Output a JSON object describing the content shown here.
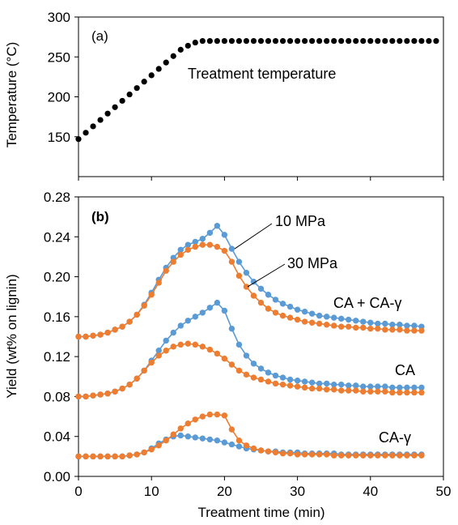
{
  "chart_data": [
    {
      "type": "scatter",
      "panel_label": "(a)",
      "xlim": [
        0,
        50
      ],
      "ylim": [
        100,
        300
      ],
      "ylabel": "Temperature (°C)",
      "y_ticks": [
        150,
        200,
        250,
        300
      ],
      "y_tick_labels": [
        "150",
        "200",
        "250",
        "300"
      ],
      "grid": false,
      "annotation": "Treatment temperature",
      "series": [
        {
          "color": "#000000",
          "x": [
            0,
            1,
            2,
            3,
            4,
            5,
            6,
            7,
            8,
            9,
            10,
            11,
            12,
            13,
            14,
            15,
            16,
            17,
            18,
            19,
            20,
            21,
            22,
            23,
            24,
            25,
            26,
            27,
            28,
            29,
            30,
            31,
            32,
            33,
            34,
            35,
            36,
            37,
            38,
            39,
            40,
            41,
            42,
            43,
            44,
            45,
            46,
            47,
            48,
            49
          ],
          "y": [
            147,
            155,
            163,
            171,
            179,
            187,
            195,
            203,
            211,
            219,
            227,
            235,
            243,
            251,
            259,
            264,
            268,
            270,
            270,
            270,
            270,
            270,
            270,
            270,
            270,
            270,
            270,
            270,
            270,
            270,
            270,
            270,
            270,
            270,
            270,
            270,
            270,
            270,
            270,
            270,
            270,
            270,
            270,
            270,
            270,
            270,
            270,
            270,
            270,
            270
          ]
        }
      ]
    },
    {
      "type": "line",
      "panel_label": "(b)",
      "xlim": [
        0,
        50
      ],
      "ylim": [
        0,
        0.28
      ],
      "xlabel": "Treatment time (min)",
      "ylabel": "Yield (wt% on lignin)",
      "x_ticks": [
        0,
        10,
        20,
        30,
        40,
        50
      ],
      "x_tick_labels": [
        "0",
        "10",
        "20",
        "30",
        "40",
        "50"
      ],
      "y_ticks": [
        0,
        0.04,
        0.08,
        0.12,
        0.16,
        0.2,
        0.24,
        0.28
      ],
      "y_tick_labels": [
        "0.00",
        "0.04",
        "0.08",
        "0.12",
        "0.16",
        "0.20",
        "0.24",
        "0.28"
      ],
      "grid": false,
      "labels": {
        "p10": "10 MPa",
        "p30": "30 MPa",
        "sum": "CA + CA-γ",
        "ca": "CA",
        "cag": "CA-γ"
      },
      "colors": {
        "p10": "#5B9BD5",
        "p30": "#ED7D31"
      },
      "x": [
        0,
        1,
        2,
        3,
        4,
        5,
        6,
        7,
        8,
        9,
        10,
        11,
        12,
        13,
        14,
        15,
        16,
        17,
        18,
        19,
        20,
        21,
        22,
        23,
        24,
        25,
        26,
        27,
        28,
        29,
        30,
        31,
        32,
        33,
        34,
        35,
        36,
        37,
        38,
        39,
        40,
        41,
        42,
        43,
        44,
        45,
        46,
        47
      ],
      "series": [
        {
          "group": "CA + CA-γ",
          "pressure": "10 MPa",
          "values": [
            0.14,
            0.14,
            0.141,
            0.142,
            0.144,
            0.147,
            0.15,
            0.155,
            0.162,
            0.172,
            0.184,
            0.197,
            0.209,
            0.219,
            0.227,
            0.232,
            0.235,
            0.238,
            0.244,
            0.251,
            0.242,
            0.228,
            0.215,
            0.204,
            0.195,
            0.188,
            0.182,
            0.177,
            0.173,
            0.17,
            0.167,
            0.165,
            0.163,
            0.161,
            0.16,
            0.159,
            0.158,
            0.157,
            0.156,
            0.155,
            0.154,
            0.153,
            0.153,
            0.152,
            0.152,
            0.151,
            0.151,
            0.15
          ]
        },
        {
          "group": "CA + CA-γ",
          "pressure": "30 MPa",
          "values": [
            0.14,
            0.14,
            0.141,
            0.142,
            0.144,
            0.147,
            0.15,
            0.155,
            0.162,
            0.171,
            0.182,
            0.194,
            0.206,
            0.215,
            0.222,
            0.227,
            0.23,
            0.232,
            0.232,
            0.23,
            0.226,
            0.215,
            0.201,
            0.19,
            0.181,
            0.174,
            0.168,
            0.164,
            0.161,
            0.159,
            0.157,
            0.155,
            0.154,
            0.153,
            0.152,
            0.151,
            0.15,
            0.15,
            0.149,
            0.149,
            0.148,
            0.148,
            0.147,
            0.147,
            0.147,
            0.146,
            0.146,
            0.146
          ]
        },
        {
          "group": "CA",
          "pressure": "10 MPa",
          "values": [
            0.08,
            0.08,
            0.081,
            0.082,
            0.083,
            0.085,
            0.088,
            0.092,
            0.098,
            0.106,
            0.116,
            0.126,
            0.136,
            0.144,
            0.151,
            0.156,
            0.16,
            0.164,
            0.169,
            0.174,
            0.166,
            0.148,
            0.132,
            0.121,
            0.113,
            0.108,
            0.104,
            0.101,
            0.099,
            0.097,
            0.096,
            0.095,
            0.094,
            0.093,
            0.093,
            0.092,
            0.092,
            0.091,
            0.091,
            0.09,
            0.09,
            0.09,
            0.09,
            0.089,
            0.089,
            0.089,
            0.089,
            0.089
          ]
        },
        {
          "group": "CA",
          "pressure": "30 MPa",
          "values": [
            0.08,
            0.08,
            0.081,
            0.082,
            0.083,
            0.085,
            0.088,
            0.092,
            0.098,
            0.106,
            0.114,
            0.121,
            0.126,
            0.13,
            0.132,
            0.133,
            0.132,
            0.13,
            0.127,
            0.123,
            0.118,
            0.112,
            0.106,
            0.102,
            0.099,
            0.097,
            0.095,
            0.093,
            0.092,
            0.091,
            0.09,
            0.089,
            0.088,
            0.088,
            0.087,
            0.087,
            0.086,
            0.086,
            0.086,
            0.085,
            0.085,
            0.085,
            0.085,
            0.084,
            0.084,
            0.084,
            0.084,
            0.084
          ]
        },
        {
          "group": "CA-γ",
          "pressure": "10 MPa",
          "values": [
            0.02,
            0.02,
            0.02,
            0.02,
            0.02,
            0.02,
            0.02,
            0.021,
            0.022,
            0.024,
            0.028,
            0.033,
            0.037,
            0.04,
            0.041,
            0.04,
            0.039,
            0.038,
            0.037,
            0.036,
            0.034,
            0.032,
            0.03,
            0.028,
            0.027,
            0.026,
            0.025,
            0.025,
            0.024,
            0.024,
            0.024,
            0.023,
            0.023,
            0.023,
            0.023,
            0.023,
            0.022,
            0.022,
            0.022,
            0.022,
            0.022,
            0.022,
            0.022,
            0.022,
            0.022,
            0.022,
            0.022,
            0.022
          ]
        },
        {
          "group": "CA-γ",
          "pressure": "30 MPa",
          "values": [
            0.02,
            0.02,
            0.02,
            0.02,
            0.02,
            0.02,
            0.02,
            0.021,
            0.022,
            0.024,
            0.027,
            0.031,
            0.036,
            0.042,
            0.048,
            0.053,
            0.057,
            0.06,
            0.062,
            0.062,
            0.061,
            0.047,
            0.036,
            0.031,
            0.028,
            0.026,
            0.025,
            0.024,
            0.023,
            0.023,
            0.022,
            0.022,
            0.022,
            0.022,
            0.022,
            0.021,
            0.021,
            0.021,
            0.021,
            0.021,
            0.021,
            0.021,
            0.021,
            0.021,
            0.021,
            0.021,
            0.021,
            0.021
          ]
        }
      ]
    }
  ]
}
